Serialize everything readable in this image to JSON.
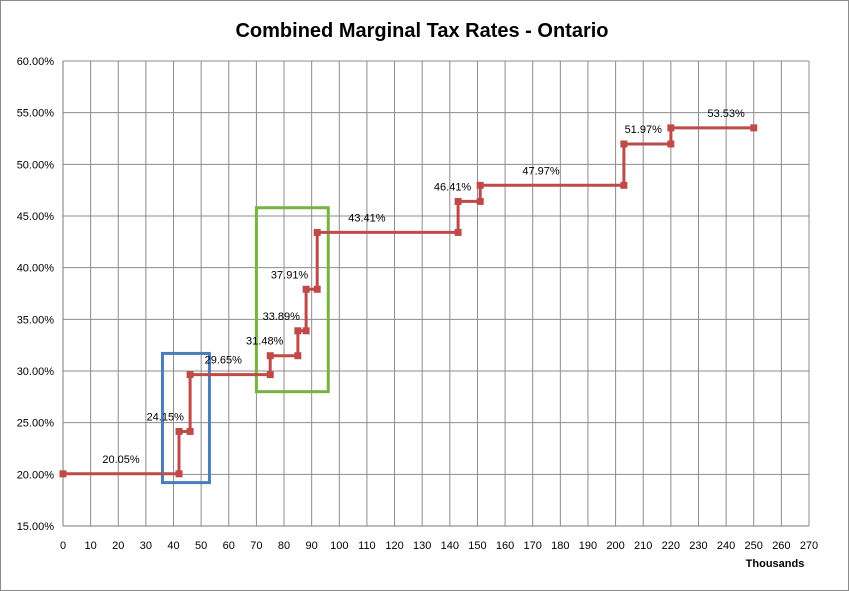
{
  "chart_data": {
    "type": "line",
    "title": "Combined Marginal Tax Rates - Ontario",
    "xlabel": "Thousands",
    "ylabel": "",
    "xlim": [
      0,
      270
    ],
    "ylim": [
      15,
      60
    ],
    "x_ticks": [
      0,
      10,
      20,
      30,
      40,
      50,
      60,
      70,
      80,
      90,
      100,
      110,
      120,
      130,
      140,
      150,
      160,
      170,
      180,
      190,
      200,
      210,
      220,
      230,
      240,
      250,
      260,
      270
    ],
    "y_ticks": [
      15,
      20,
      25,
      30,
      35,
      40,
      45,
      50,
      55,
      60
    ],
    "y_tick_labels": [
      "15.00%",
      "20.00%",
      "25.00%",
      "30.00%",
      "35.00%",
      "40.00%",
      "45.00%",
      "50.00%",
      "55.00%",
      "60.00%"
    ],
    "grid": true,
    "series_color": "#be4b48",
    "series": [
      {
        "points": [
          [
            0,
            20.05
          ],
          [
            42,
            20.05
          ],
          [
            42,
            24.15
          ],
          [
            46,
            24.15
          ],
          [
            46,
            29.65
          ],
          [
            75,
            29.65
          ],
          [
            75,
            31.48
          ],
          [
            85,
            31.48
          ],
          [
            85,
            33.89
          ],
          [
            88,
            33.89
          ],
          [
            88,
            37.91
          ],
          [
            92,
            37.91
          ],
          [
            92,
            43.41
          ],
          [
            143,
            43.41
          ],
          [
            143,
            46.41
          ],
          [
            151,
            46.41
          ],
          [
            151,
            47.97
          ],
          [
            203,
            47.97
          ],
          [
            203,
            51.97
          ],
          [
            220,
            51.97
          ],
          [
            220,
            53.53
          ],
          [
            250,
            53.53
          ]
        ]
      }
    ],
    "data_labels": [
      {
        "text": "20.05%",
        "x": 21,
        "y": 20.05
      },
      {
        "text": "24.15%",
        "x": 37,
        "y": 24.15
      },
      {
        "text": "29.65%",
        "x": 58,
        "y": 29.65
      },
      {
        "text": "31.48%",
        "x": 73,
        "y": 31.48
      },
      {
        "text": "33.89%",
        "x": 79,
        "y": 33.89
      },
      {
        "text": "37.91%",
        "x": 82,
        "y": 37.91
      },
      {
        "text": "43.41%",
        "x": 110,
        "y": 43.41
      },
      {
        "text": "46.41%",
        "x": 141,
        "y": 46.41
      },
      {
        "text": "47.97%",
        "x": 173,
        "y": 47.97
      },
      {
        "text": "51.97%",
        "x": 210,
        "y": 51.97
      },
      {
        "text": "53.53%",
        "x": 240,
        "y": 53.53
      }
    ],
    "highlight_boxes": [
      {
        "color": "#4a7ebb",
        "x_range": [
          36,
          53
        ],
        "y_range": [
          19.2,
          31.7
        ]
      },
      {
        "color": "#77b342",
        "x_range": [
          70,
          96
        ],
        "y_range": [
          28.0,
          45.8
        ]
      }
    ]
  }
}
